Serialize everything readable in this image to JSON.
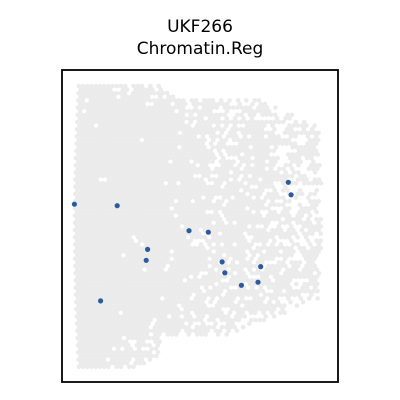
{
  "chart_data": {
    "type": "scatter",
    "title": "UKF266",
    "subtitle": "Chromatin.Reg",
    "xlabel": "",
    "ylabel": "",
    "xlim": [
      0,
      100
    ],
    "ylim": [
      0,
      100
    ],
    "grid": false,
    "colors": {
      "background_points": "#ebebeb",
      "highlight_points": "#2c5aa0",
      "frame": "#000000"
    },
    "highlighted": [
      {
        "x": 4.5,
        "y": 57
      },
      {
        "x": 20,
        "y": 56.5
      },
      {
        "x": 14,
        "y": 26
      },
      {
        "x": 31,
        "y": 42.5
      },
      {
        "x": 30.5,
        "y": 39
      },
      {
        "x": 46,
        "y": 48.5
      },
      {
        "x": 53,
        "y": 48
      },
      {
        "x": 58,
        "y": 38.5
      },
      {
        "x": 59,
        "y": 35
      },
      {
        "x": 65,
        "y": 31
      },
      {
        "x": 72,
        "y": 37
      },
      {
        "x": 71,
        "y": 32
      },
      {
        "x": 82,
        "y": 64
      },
      {
        "x": 83,
        "y": 60
      }
    ]
  }
}
